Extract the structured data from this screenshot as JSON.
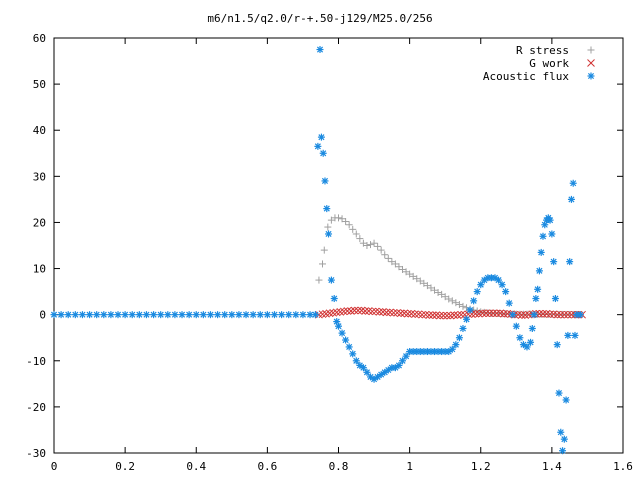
{
  "chart_data": {
    "type": "scatter",
    "title": "m6/n1.5/q2.0/r-+.50-j129/M25.0/256",
    "xlabel": "",
    "ylabel": "",
    "xlim": [
      0,
      1.6
    ],
    "ylim": [
      -30,
      60
    ],
    "x_ticks": [
      0,
      0.2,
      0.4,
      0.6,
      0.8,
      1,
      1.2,
      1.4,
      1.6
    ],
    "y_ticks": [
      -30,
      -20,
      -10,
      0,
      10,
      20,
      30,
      40,
      50,
      60
    ],
    "x_tick_labels": [
      "0",
      "0.2",
      "0.4",
      "0.6",
      "0.8",
      "1",
      "1.2",
      "1.4",
      "1.6"
    ],
    "y_tick_labels": [
      "-30",
      "-20",
      "-10",
      "0",
      "10",
      "20",
      "30",
      "40",
      "50",
      "60"
    ],
    "grid": false,
    "legend_position": "top-right",
    "series": [
      {
        "name": "R stress",
        "marker": "plus",
        "color": "#a0a0a0",
        "points": [
          [
            0.745,
            7.5
          ],
          [
            0.755,
            11
          ],
          [
            0.76,
            14
          ],
          [
            0.77,
            19
          ],
          [
            0.78,
            20.5
          ],
          [
            0.79,
            21
          ],
          [
            0.8,
            21
          ],
          [
            0.81,
            20.8
          ],
          [
            0.82,
            20.2
          ],
          [
            0.83,
            19.5
          ],
          [
            0.84,
            18.5
          ],
          [
            0.85,
            17.5
          ],
          [
            0.86,
            16.5
          ],
          [
            0.87,
            15.5
          ],
          [
            0.88,
            15
          ],
          [
            0.89,
            15.2
          ],
          [
            0.9,
            15.5
          ],
          [
            0.91,
            14.8
          ],
          [
            0.92,
            14
          ],
          [
            0.93,
            13
          ],
          [
            0.94,
            12.2
          ],
          [
            0.95,
            11.5
          ],
          [
            0.96,
            11
          ],
          [
            0.97,
            10.4
          ],
          [
            0.98,
            9.8
          ],
          [
            0.99,
            9.3
          ],
          [
            1.0,
            8.8
          ],
          [
            1.01,
            8.3
          ],
          [
            1.02,
            7.8
          ],
          [
            1.03,
            7.3
          ],
          [
            1.04,
            6.8
          ],
          [
            1.05,
            6.3
          ],
          [
            1.06,
            5.8
          ],
          [
            1.07,
            5.3
          ],
          [
            1.08,
            4.8
          ],
          [
            1.09,
            4.4
          ],
          [
            1.1,
            3.9
          ],
          [
            1.11,
            3.4
          ],
          [
            1.12,
            3.0
          ],
          [
            1.13,
            2.6
          ],
          [
            1.14,
            2.2
          ],
          [
            1.15,
            1.8
          ],
          [
            1.16,
            1.5
          ],
          [
            1.17,
            1.2
          ],
          [
            1.18,
            1.0
          ],
          [
            1.19,
            0.8
          ],
          [
            1.2,
            0.6
          ],
          [
            1.21,
            0.5
          ],
          [
            1.22,
            0.4
          ],
          [
            1.23,
            0.3
          ],
          [
            1.24,
            0.3
          ],
          [
            1.25,
            0.25
          ],
          [
            1.26,
            0.2
          ],
          [
            1.27,
            0.2
          ],
          [
            1.28,
            0.15
          ],
          [
            1.29,
            0.1
          ],
          [
            1.3,
            0.1
          ],
          [
            1.31,
            0.1
          ],
          [
            1.32,
            0.1
          ],
          [
            1.33,
            0.1
          ],
          [
            1.34,
            0.1
          ],
          [
            1.35,
            0.05
          ],
          [
            1.36,
            0.05
          ],
          [
            1.37,
            0.05
          ],
          [
            1.38,
            0.05
          ],
          [
            1.39,
            0.05
          ],
          [
            1.4,
            0.05
          ],
          [
            1.41,
            0.05
          ],
          [
            1.42,
            0.05
          ],
          [
            1.43,
            0.05
          ],
          [
            1.44,
            0.05
          ],
          [
            1.45,
            0.05
          ],
          [
            1.46,
            0.05
          ],
          [
            1.47,
            0.05
          ],
          [
            1.48,
            0.0
          ]
        ]
      },
      {
        "name": "G work",
        "marker": "cross",
        "color": "#d03030",
        "points": [
          [
            0.745,
            0
          ],
          [
            0.755,
            0.1
          ],
          [
            0.765,
            0.2
          ],
          [
            0.775,
            0.3
          ],
          [
            0.785,
            0.4
          ],
          [
            0.795,
            0.5
          ],
          [
            0.805,
            0.6
          ],
          [
            0.815,
            0.7
          ],
          [
            0.825,
            0.8
          ],
          [
            0.835,
            0.8
          ],
          [
            0.845,
            0.9
          ],
          [
            0.855,
            0.9
          ],
          [
            0.865,
            0.9
          ],
          [
            0.875,
            0.8
          ],
          [
            0.885,
            0.8
          ],
          [
            0.895,
            0.7
          ],
          [
            0.905,
            0.7
          ],
          [
            0.915,
            0.6
          ],
          [
            0.925,
            0.6
          ],
          [
            0.935,
            0.5
          ],
          [
            0.945,
            0.5
          ],
          [
            0.955,
            0.4
          ],
          [
            0.965,
            0.4
          ],
          [
            0.975,
            0.3
          ],
          [
            0.985,
            0.3
          ],
          [
            0.995,
            0.2
          ],
          [
            1.005,
            0.2
          ],
          [
            1.015,
            0.1
          ],
          [
            1.025,
            0.1
          ],
          [
            1.035,
            0.0
          ],
          [
            1.045,
            0.0
          ],
          [
            1.055,
            -0.1
          ],
          [
            1.065,
            -0.1
          ],
          [
            1.075,
            -0.1
          ],
          [
            1.085,
            -0.2
          ],
          [
            1.095,
            -0.2
          ],
          [
            1.105,
            -0.2
          ],
          [
            1.115,
            -0.2
          ],
          [
            1.125,
            -0.1
          ],
          [
            1.135,
            -0.1
          ],
          [
            1.145,
            0.0
          ],
          [
            1.155,
            0.0
          ],
          [
            1.165,
            0.1
          ],
          [
            1.175,
            0.1
          ],
          [
            1.185,
            0.2
          ],
          [
            1.195,
            0.2
          ],
          [
            1.205,
            0.3
          ],
          [
            1.215,
            0.3
          ],
          [
            1.225,
            0.3
          ],
          [
            1.235,
            0.3
          ],
          [
            1.245,
            0.3
          ],
          [
            1.255,
            0.3
          ],
          [
            1.265,
            0.2
          ],
          [
            1.275,
            0.2
          ],
          [
            1.285,
            0.1
          ],
          [
            1.295,
            0.0
          ],
          [
            1.305,
            0.0
          ],
          [
            1.315,
            -0.1
          ],
          [
            1.325,
            -0.1
          ],
          [
            1.335,
            0.0
          ],
          [
            1.345,
            0.1
          ],
          [
            1.355,
            0.2
          ],
          [
            1.365,
            0.2
          ],
          [
            1.375,
            0.2
          ],
          [
            1.385,
            0.2
          ],
          [
            1.395,
            0.1
          ],
          [
            1.405,
            0.1
          ],
          [
            1.415,
            0.0
          ],
          [
            1.425,
            0.0
          ],
          [
            1.435,
            0.0
          ],
          [
            1.445,
            0.0
          ],
          [
            1.455,
            0.0
          ],
          [
            1.465,
            0.0
          ],
          [
            1.475,
            0.0
          ],
          [
            1.485,
            0.0
          ]
        ]
      },
      {
        "name": "Acoustic flux",
        "marker": "star",
        "color": "#1a8ae0",
        "points": [
          [
            0.0,
            0
          ],
          [
            0.02,
            0
          ],
          [
            0.04,
            0
          ],
          [
            0.06,
            0
          ],
          [
            0.08,
            0
          ],
          [
            0.1,
            0
          ],
          [
            0.12,
            0
          ],
          [
            0.14,
            0
          ],
          [
            0.16,
            0
          ],
          [
            0.18,
            0
          ],
          [
            0.2,
            0
          ],
          [
            0.22,
            0
          ],
          [
            0.24,
            0
          ],
          [
            0.26,
            0
          ],
          [
            0.28,
            0
          ],
          [
            0.3,
            0
          ],
          [
            0.32,
            0
          ],
          [
            0.34,
            0
          ],
          [
            0.36,
            0
          ],
          [
            0.38,
            0
          ],
          [
            0.4,
            0
          ],
          [
            0.42,
            0
          ],
          [
            0.44,
            0
          ],
          [
            0.46,
            0
          ],
          [
            0.48,
            0
          ],
          [
            0.5,
            0
          ],
          [
            0.52,
            0
          ],
          [
            0.54,
            0
          ],
          [
            0.56,
            0
          ],
          [
            0.58,
            0
          ],
          [
            0.6,
            0
          ],
          [
            0.62,
            0
          ],
          [
            0.64,
            0
          ],
          [
            0.66,
            0
          ],
          [
            0.68,
            0
          ],
          [
            0.7,
            0
          ],
          [
            0.72,
            0
          ],
          [
            0.735,
            0
          ],
          [
            0.742,
            36.5
          ],
          [
            0.748,
            57.5
          ],
          [
            0.752,
            38.5
          ],
          [
            0.757,
            35
          ],
          [
            0.762,
            29
          ],
          [
            0.767,
            23
          ],
          [
            0.772,
            17.5
          ],
          [
            0.78,
            7.5
          ],
          [
            0.788,
            3.5
          ],
          [
            0.795,
            -1.5
          ],
          [
            0.8,
            -2.5
          ],
          [
            0.81,
            -4
          ],
          [
            0.82,
            -5.5
          ],
          [
            0.83,
            -7
          ],
          [
            0.84,
            -8.5
          ],
          [
            0.85,
            -10
          ],
          [
            0.86,
            -11
          ],
          [
            0.87,
            -11.5
          ],
          [
            0.88,
            -12.5
          ],
          [
            0.89,
            -13.5
          ],
          [
            0.9,
            -14
          ],
          [
            0.91,
            -13.5
          ],
          [
            0.92,
            -13
          ],
          [
            0.93,
            -12.5
          ],
          [
            0.94,
            -12
          ],
          [
            0.95,
            -11.5
          ],
          [
            0.96,
            -11.5
          ],
          [
            0.97,
            -11
          ],
          [
            0.98,
            -10
          ],
          [
            0.99,
            -9
          ],
          [
            1.0,
            -8
          ],
          [
            1.01,
            -8
          ],
          [
            1.02,
            -8
          ],
          [
            1.03,
            -8
          ],
          [
            1.04,
            -8
          ],
          [
            1.05,
            -8
          ],
          [
            1.06,
            -8
          ],
          [
            1.07,
            -8
          ],
          [
            1.08,
            -8
          ],
          [
            1.09,
            -8
          ],
          [
            1.1,
            -8
          ],
          [
            1.11,
            -8
          ],
          [
            1.12,
            -7.5
          ],
          [
            1.13,
            -6.5
          ],
          [
            1.14,
            -5
          ],
          [
            1.15,
            -3
          ],
          [
            1.16,
            -1
          ],
          [
            1.17,
            1
          ],
          [
            1.18,
            3
          ],
          [
            1.19,
            5
          ],
          [
            1.2,
            6.5
          ],
          [
            1.21,
            7.5
          ],
          [
            1.22,
            8
          ],
          [
            1.23,
            8
          ],
          [
            1.24,
            8
          ],
          [
            1.25,
            7.5
          ],
          [
            1.26,
            6.5
          ],
          [
            1.27,
            5
          ],
          [
            1.28,
            2.5
          ],
          [
            1.29,
            0
          ],
          [
            1.3,
            -2.5
          ],
          [
            1.31,
            -5
          ],
          [
            1.32,
            -6.5
          ],
          [
            1.33,
            -7
          ],
          [
            1.34,
            -6
          ],
          [
            1.345,
            -3
          ],
          [
            1.35,
            0
          ],
          [
            1.355,
            3.5
          ],
          [
            1.36,
            5.5
          ],
          [
            1.365,
            9.5
          ],
          [
            1.37,
            13.5
          ],
          [
            1.375,
            17
          ],
          [
            1.38,
            19.5
          ],
          [
            1.385,
            20.5
          ],
          [
            1.39,
            21
          ],
          [
            1.395,
            20.5
          ],
          [
            1.4,
            17.5
          ],
          [
            1.405,
            11.5
          ],
          [
            1.41,
            3.5
          ],
          [
            1.415,
            -6.5
          ],
          [
            1.42,
            -17
          ],
          [
            1.425,
            -25.5
          ],
          [
            1.43,
            -29.5
          ],
          [
            1.435,
            -27
          ],
          [
            1.44,
            -18.5
          ],
          [
            1.445,
            -4.5
          ],
          [
            1.45,
            11.5
          ],
          [
            1.455,
            25
          ],
          [
            1.46,
            28.5
          ],
          [
            1.465,
            -4.5
          ],
          [
            1.47,
            0
          ],
          [
            1.48,
            0
          ]
        ]
      }
    ]
  }
}
